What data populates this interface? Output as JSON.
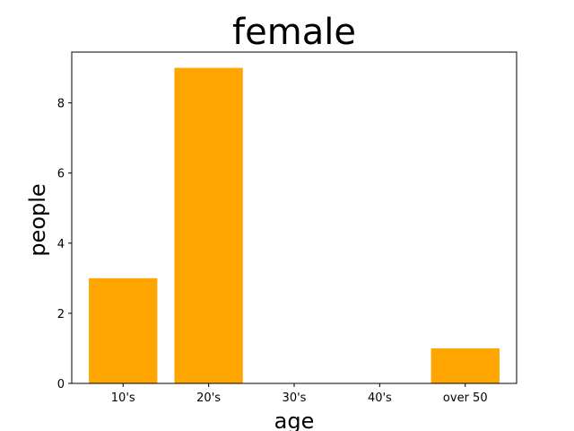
{
  "chart_data": {
    "type": "bar",
    "title": "female",
    "xlabel": "age",
    "ylabel": "people",
    "categories": [
      "10's",
      "20's",
      "30's",
      "40's",
      "over 50"
    ],
    "values": [
      3,
      9,
      0,
      0,
      1
    ],
    "ylim": [
      0,
      9.45
    ],
    "yticks": [
      0,
      2,
      4,
      6,
      8
    ],
    "bar_color": "#ffa500",
    "grid": false,
    "legend": "none"
  }
}
